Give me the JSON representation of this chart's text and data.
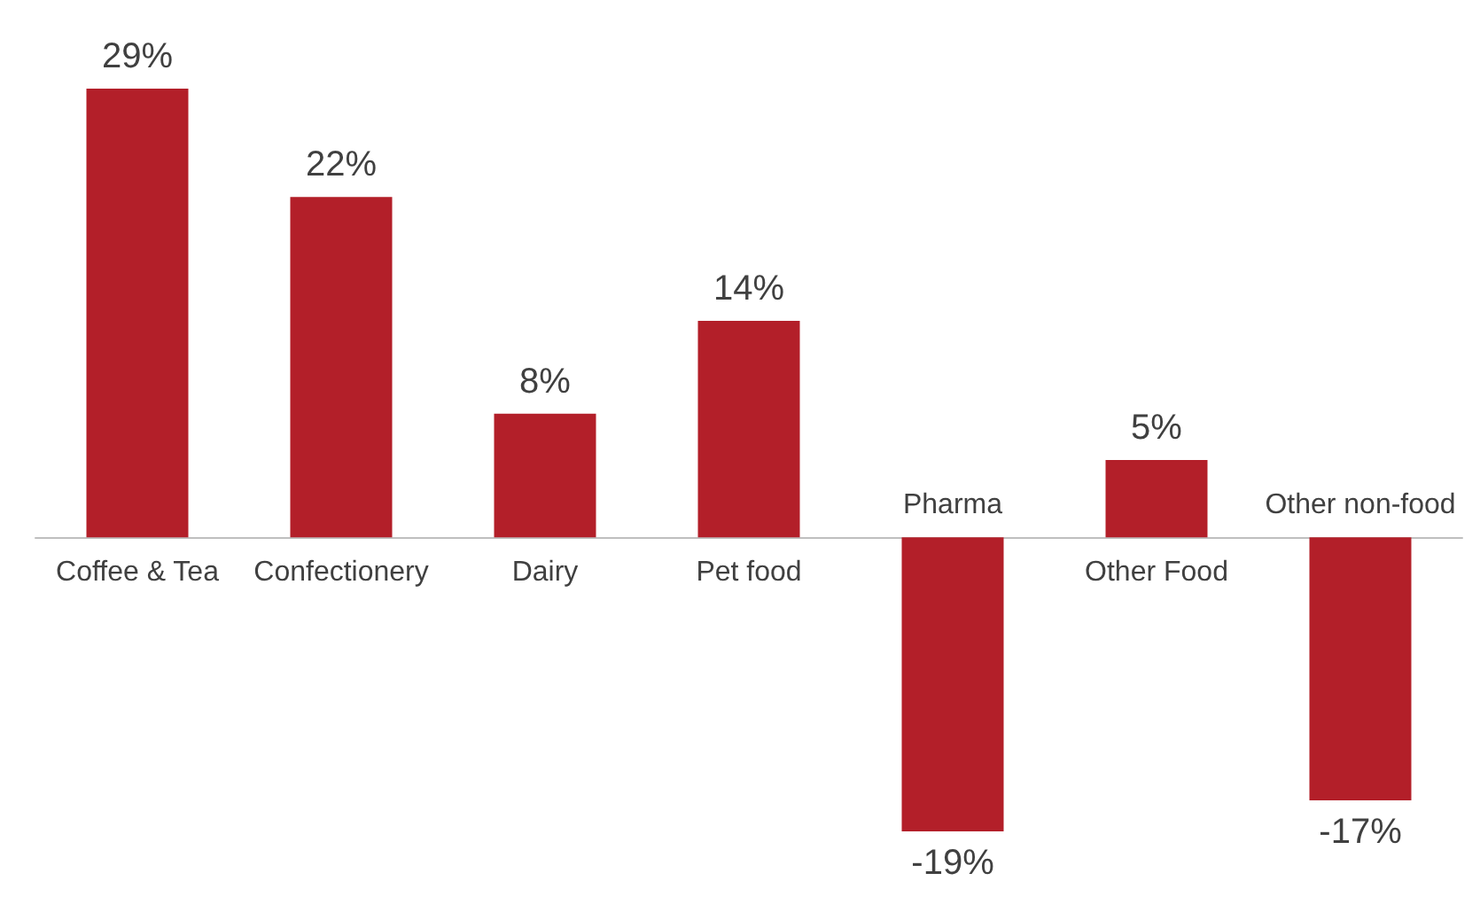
{
  "chart_data": {
    "type": "bar",
    "categories": [
      "Coffee & Tea",
      "Confectionery",
      "Dairy",
      "Pet food",
      "Pharma",
      "Other Food",
      "Other non-food"
    ],
    "values": [
      29,
      22,
      8,
      14,
      -19,
      5,
      -17
    ],
    "value_labels": [
      "29%",
      "22%",
      "8%",
      "14%",
      "-19%",
      "5%",
      "-17%"
    ],
    "color": "#b31f29",
    "grid": false
  }
}
